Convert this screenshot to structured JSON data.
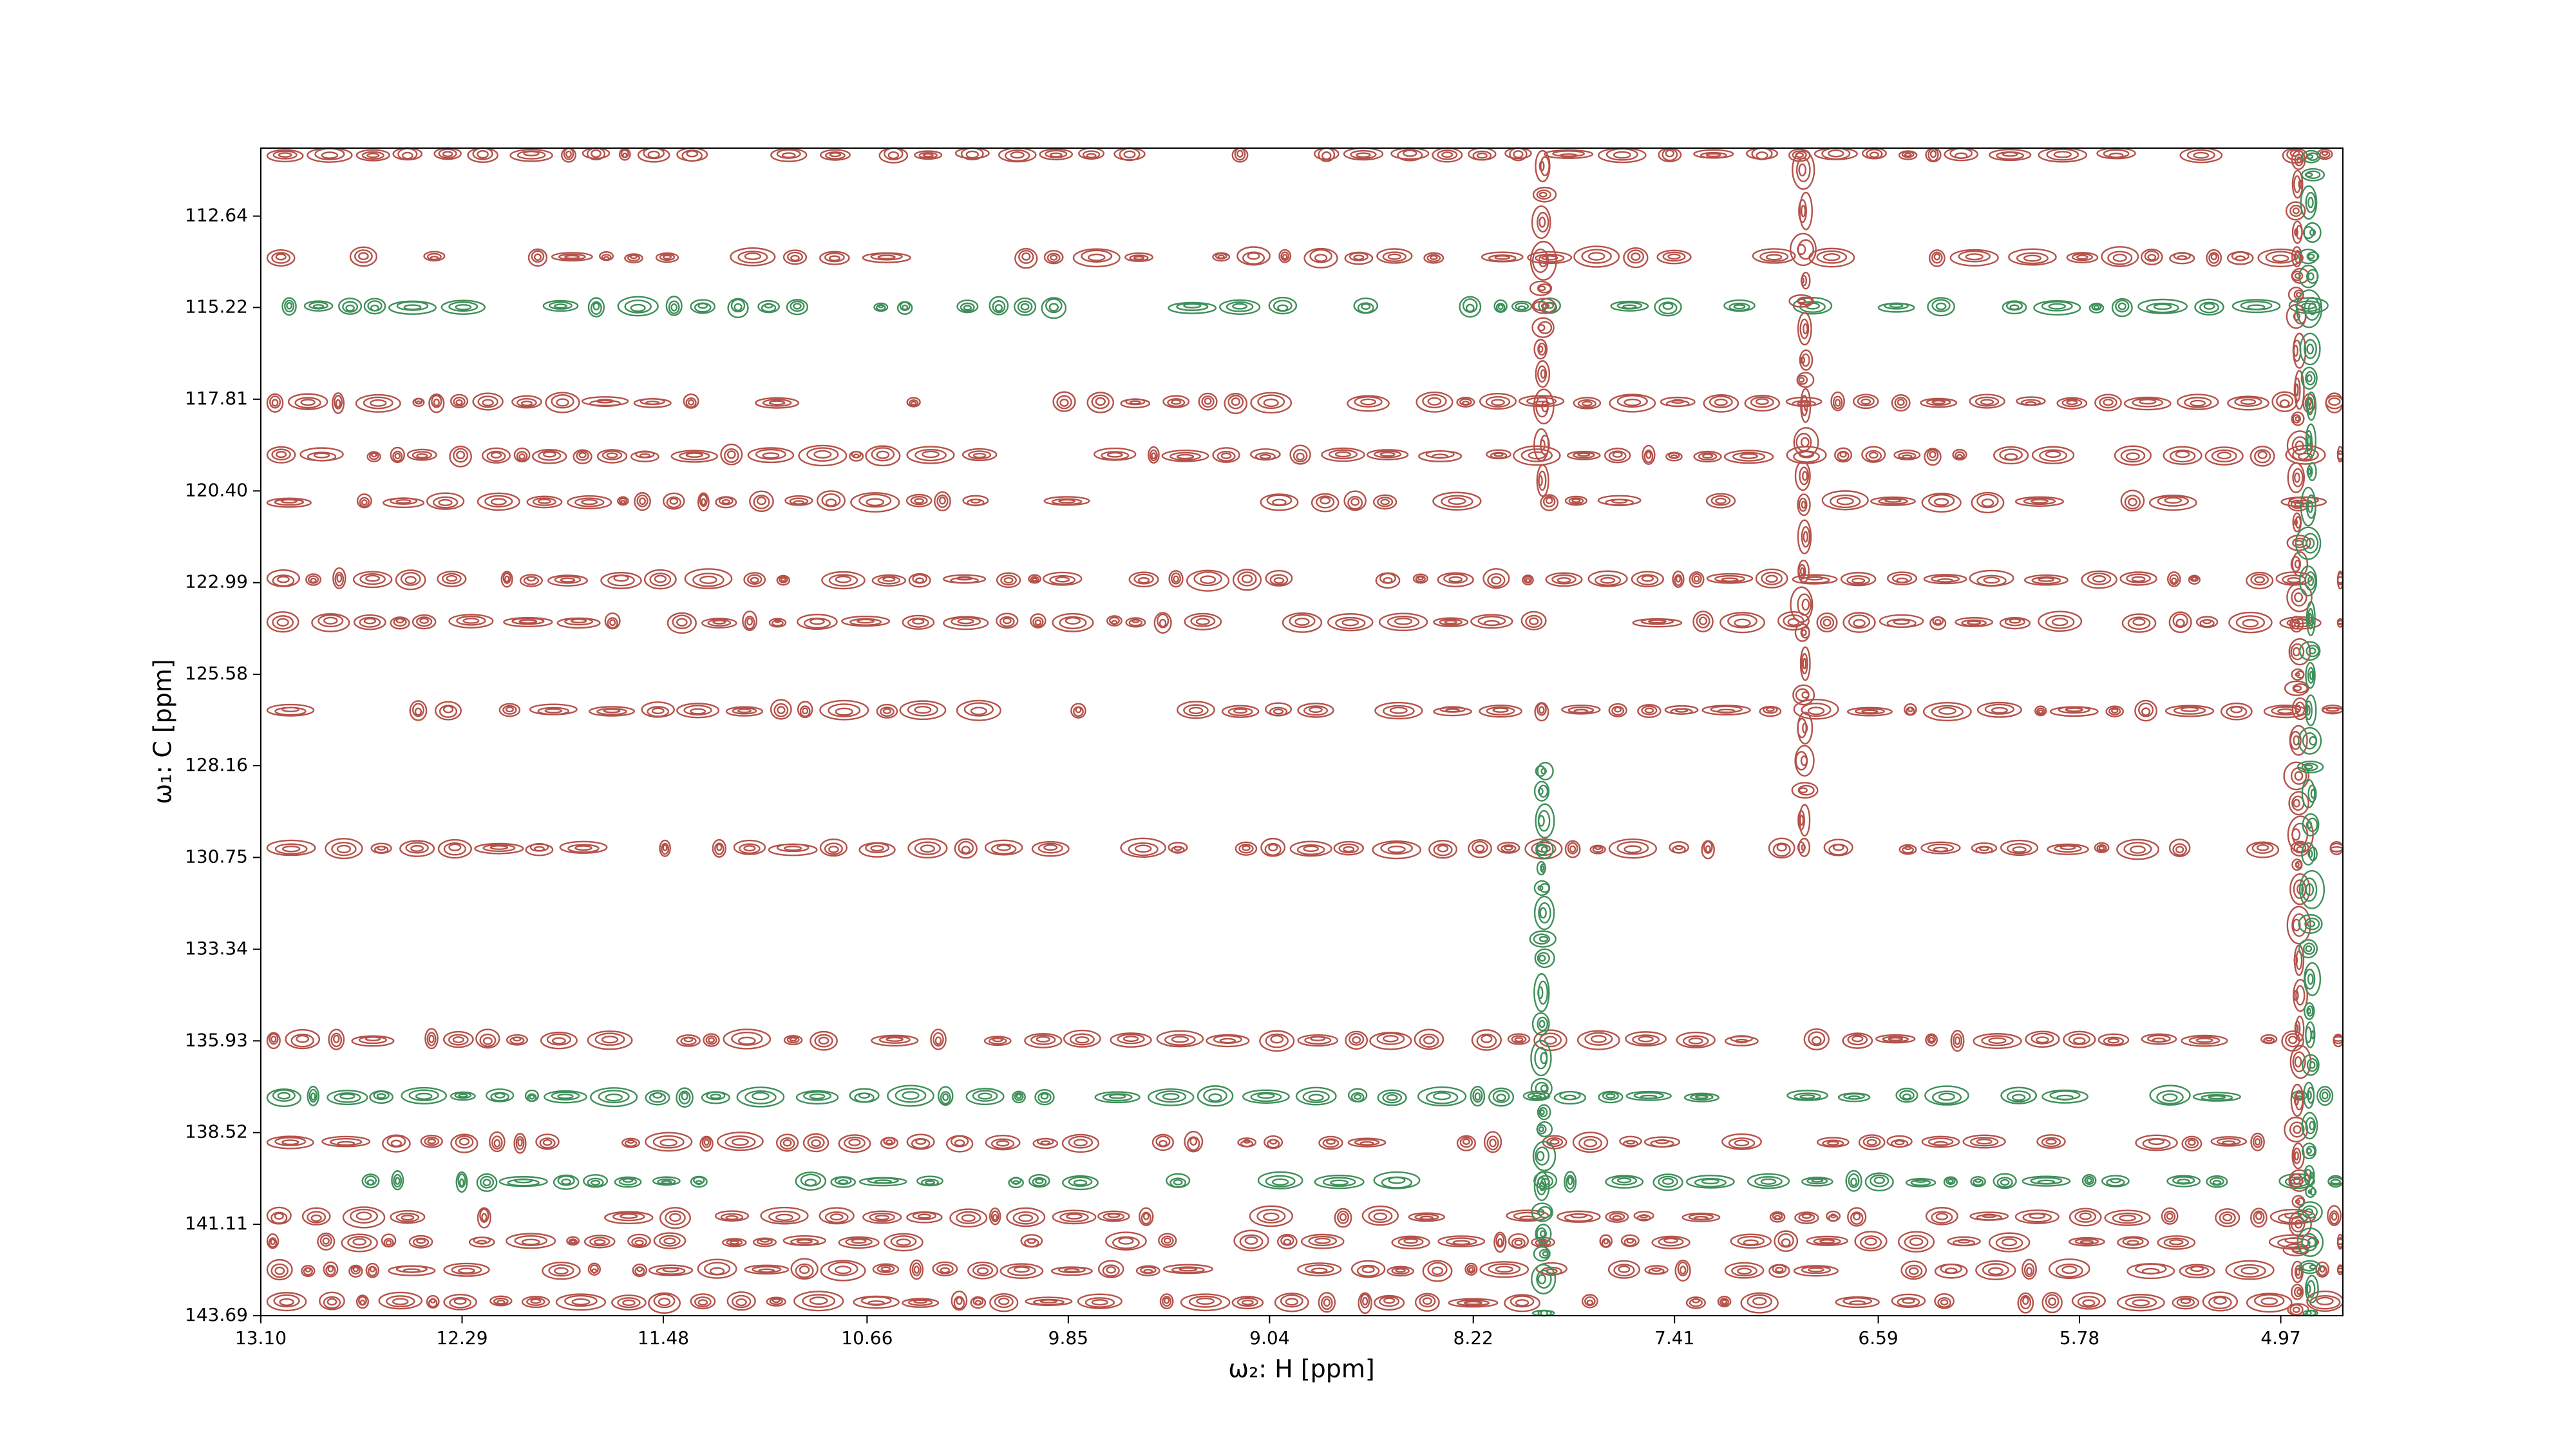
{
  "chart_data": {
    "type": "contour",
    "xlabel": "ω₂: H [ppm]",
    "ylabel": "ω₁: C [ppm]",
    "xlim": [
      13.1,
      4.72
    ],
    "ylim": [
      110.72,
      143.69
    ],
    "xticks": [
      {
        "value": 13.1,
        "label": "13.10"
      },
      12.29,
      11.48,
      10.66,
      9.85,
      9.04,
      8.22,
      7.41,
      6.59,
      5.78,
      4.97
    ],
    "yticks": [
      112.64,
      115.22,
      117.81,
      {
        "value": 120.4,
        "label": "120.40"
      },
      122.99,
      125.58,
      128.16,
      130.75,
      133.34,
      135.93,
      138.52,
      141.11,
      143.69
    ],
    "positive_color": "#b5524a",
    "negative_color": "#3f8f5a",
    "positive_rows": [
      110.9,
      113.8,
      117.9,
      119.4,
      120.7,
      122.9,
      124.1,
      126.6,
      130.5,
      135.9,
      138.8,
      140.9,
      141.6,
      142.4,
      143.3
    ],
    "negative_rows": [
      115.2,
      137.5,
      139.9
    ],
    "positive_columns": [
      [
        6.89,
        110.72,
        130.8
      ],
      [
        7.94,
        110.72,
        120.0
      ],
      [
        4.9,
        110.72,
        143.69
      ]
    ],
    "negative_columns": [
      [
        7.94,
        128.0,
        143.69
      ],
      [
        4.85,
        110.72,
        143.69
      ]
    ]
  }
}
